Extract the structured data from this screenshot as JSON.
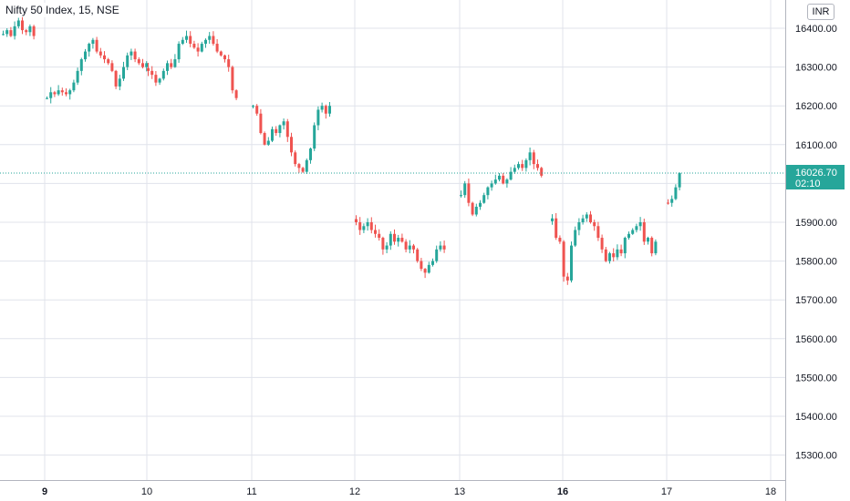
{
  "header": {
    "title": "Nifty 50 Index, 15, NSE",
    "currency": "INR"
  },
  "last_price": {
    "value": "16026.70",
    "countdown": "02:10",
    "color": "#26a69a"
  },
  "colors": {
    "up": "#26a69a",
    "down": "#ef5350",
    "grid": "#e0e3eb",
    "axis_text": "#131722"
  },
  "chart_data": {
    "type": "candlestick",
    "title": "Nifty 50 Index, 15, NSE",
    "x_ticks": [
      "9",
      "10",
      "11",
      "12",
      "13",
      "16",
      "17",
      "18"
    ],
    "x_ticks_bold": [
      "9",
      "16"
    ],
    "y_ticks": [
      "16400.00",
      "16300.00",
      "16200.00",
      "16100.00",
      "16000.00",
      "15900.00",
      "15800.00",
      "15700.00",
      "15600.00",
      "15500.00",
      "15400.00",
      "15300.00"
    ],
    "ylim": [
      15250,
      16470
    ],
    "grid": true,
    "last_price": 16026.7,
    "segments": [
      {
        "day": "9",
        "closes": [
          16385,
          16395,
          16380,
          16405,
          16420,
          16395,
          16390,
          16405,
          16380
        ]
      },
      {
        "day": "9",
        "closes": [
          16220,
          16235,
          16230,
          16240,
          16235,
          16230,
          16240,
          16260,
          16290,
          16320,
          16340,
          16360,
          16370,
          16340,
          16330,
          16320,
          16310,
          16290,
          16250,
          16270,
          16300,
          16330,
          16340,
          16320,
          16310,
          16300,
          16310
        ]
      },
      {
        "day": "10",
        "closes": [
          16290,
          16280,
          16260,
          16270,
          16290,
          16310,
          16300,
          16320,
          16360,
          16370,
          16380,
          16360,
          16350,
          16340,
          16360,
          16370,
          16380,
          16360,
          16340,
          16330,
          16320,
          16300,
          16240,
          16220
        ]
      },
      {
        "day": "11",
        "closes": [
          16200,
          16180,
          16130,
          16100,
          16110,
          16140,
          16130,
          16150,
          16160,
          16120,
          16080,
          16050,
          16040,
          16030,
          16060,
          16090,
          16150,
          16190,
          16200,
          16180,
          16200
        ]
      },
      {
        "day": "12",
        "closes": [
          15900,
          15880,
          15890,
          15900,
          15880,
          15870,
          15860,
          15830,
          15840,
          15870,
          15850,
          15860,
          15850,
          15830,
          15840,
          15830,
          15800,
          15780,
          15770,
          15790,
          15800,
          15830,
          15840,
          15830
        ]
      },
      {
        "day": "13",
        "closes": [
          15970,
          16000,
          15950,
          15920,
          15940,
          15950,
          15970,
          15990,
          16000,
          16010,
          16020,
          16000,
          16010,
          16030,
          16040,
          16050,
          16040,
          16060,
          16080,
          16050,
          16040,
          16020
        ]
      },
      {
        "day": "16",
        "closes": [
          15910,
          15860,
          15850,
          15760,
          15750,
          15840,
          15880,
          15900,
          15910,
          15920,
          15900,
          15890,
          15860,
          15830,
          15800,
          15820,
          15810,
          15830,
          15820,
          15860,
          15870,
          15880,
          15890,
          15900,
          15850,
          15860,
          15820,
          15850
        ]
      },
      {
        "day": "17",
        "closes": [
          15950,
          15960,
          15990,
          16026.7
        ]
      }
    ]
  }
}
